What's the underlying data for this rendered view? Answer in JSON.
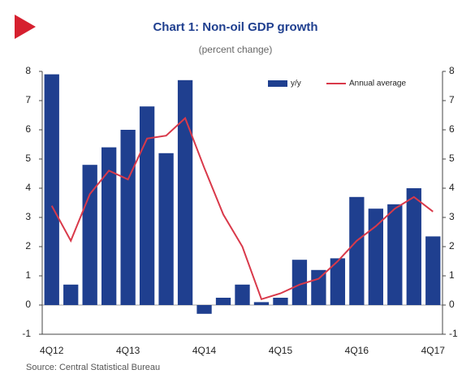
{
  "chart_data": {
    "type": "bar",
    "title": "Chart 1: Non-oil GDP growth",
    "subtitle": "(percent change)",
    "source": "Source: Central Statistical Bureau",
    "categories": [
      "4Q12",
      null,
      null,
      null,
      "4Q13",
      null,
      null,
      null,
      "4Q14",
      null,
      null,
      null,
      "4Q15",
      null,
      null,
      null,
      "4Q16",
      null,
      null,
      null,
      "4Q17"
    ],
    "series": [
      {
        "name": "y/y",
        "type": "bar",
        "color": "#1f3f8f",
        "values": [
          7.9,
          0.7,
          4.8,
          5.4,
          6.0,
          6.8,
          5.2,
          7.7,
          -0.3,
          0.25,
          0.7,
          0.1,
          0.25,
          1.55,
          1.2,
          1.6,
          3.7,
          3.3,
          3.45,
          4.0,
          2.35
        ]
      },
      {
        "name": "Annual average",
        "type": "line",
        "color": "#d9394a",
        "values": [
          3.4,
          2.2,
          3.8,
          4.6,
          4.3,
          5.7,
          5.8,
          6.4,
          4.7,
          3.1,
          2.0,
          0.2,
          0.4,
          0.7,
          0.9,
          1.5,
          2.2,
          2.7,
          3.3,
          3.7,
          3.2
        ]
      }
    ],
    "ylim": [
      -1,
      8
    ],
    "yticks": [
      -1,
      0,
      1,
      2,
      3,
      4,
      5,
      6,
      7,
      8
    ],
    "y2lim": [
      -1,
      8
    ],
    "y2ticks": [
      -1,
      0,
      1,
      2,
      3,
      4,
      5,
      6,
      7,
      8
    ],
    "grid": false,
    "legend": "top-right"
  }
}
